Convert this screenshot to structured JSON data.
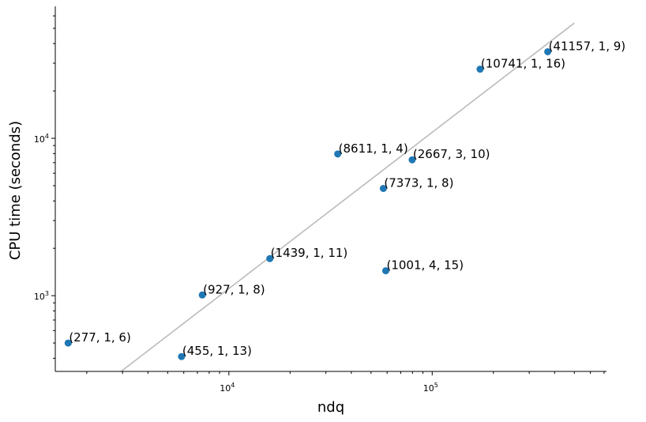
{
  "chart_data": {
    "type": "scatter",
    "title": "",
    "xlabel": "ndq",
    "ylabel": "CPU time (seconds)",
    "xscale": "log",
    "yscale": "log",
    "xlim": [
      1400,
      720000
    ],
    "ylim": [
      330,
      69000
    ],
    "grid": false,
    "x_tick_labels": [
      {
        "value": 10000,
        "base": "10",
        "exp": "4"
      },
      {
        "value": 100000,
        "base": "10",
        "exp": "5"
      }
    ],
    "y_tick_labels": [
      {
        "value": 1000,
        "base": "10",
        "exp": "3"
      },
      {
        "value": 10000,
        "base": "10",
        "exp": "4"
      }
    ],
    "point_color": "#1f77b4",
    "trend_color": "#bbbbbb",
    "trend_line": {
      "x": [
        2950,
        500000
      ],
      "y": [
        330,
        54000
      ]
    },
    "points": [
      {
        "x": 1620,
        "y": 500,
        "label": "(277, 1, 6)"
      },
      {
        "x": 5850,
        "y": 410,
        "label": "(455, 1, 13)"
      },
      {
        "x": 7400,
        "y": 1010,
        "label": "(927, 1, 8)"
      },
      {
        "x": 15900,
        "y": 1720,
        "label": "(1439, 1, 11)"
      },
      {
        "x": 34300,
        "y": 7950,
        "label": "(8611, 1, 4)"
      },
      {
        "x": 57500,
        "y": 4800,
        "label": "(7373, 1, 8)"
      },
      {
        "x": 59100,
        "y": 1440,
        "label": "(1001, 4, 15)"
      },
      {
        "x": 79700,
        "y": 7300,
        "label": "(2667, 3, 10)"
      },
      {
        "x": 172000,
        "y": 27500,
        "label": "(10741, 1, 16)"
      },
      {
        "x": 370000,
        "y": 35500,
        "label": "(41157, 1, 9)"
      }
    ]
  }
}
